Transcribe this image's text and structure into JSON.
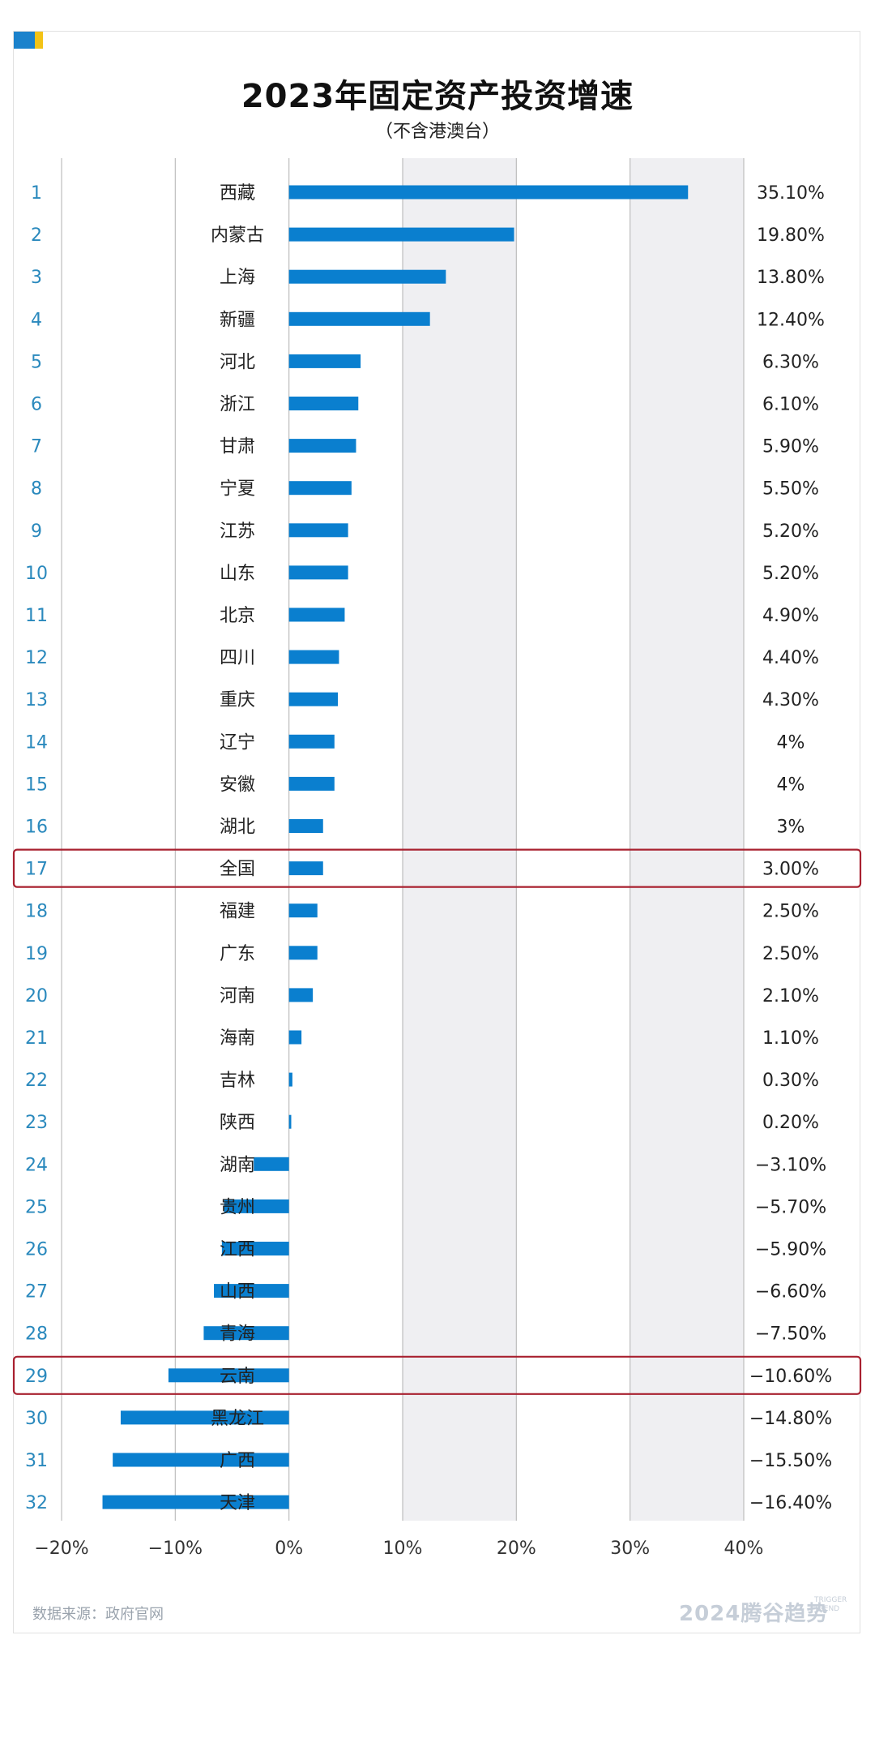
{
  "title": "2023年固定资产投资增速",
  "subtitle": "（不含港澳台）",
  "source": "数据来源：政府官网",
  "brand": {
    "logo_text": "2024腾谷趋势",
    "logo_en": "TRIGGER TREND"
  },
  "colors": {
    "bar": "#0a7fcf",
    "rank": "#2a89bd",
    "highlight": "#a8202f",
    "shade": "#efeff2"
  },
  "chart_data": {
    "type": "bar",
    "orientation": "horizontal",
    "title": "2023年固定资产投资增速",
    "subtitle": "（不含港澳台）",
    "xlim": [
      -20,
      40
    ],
    "ticks": [
      {
        "value": -20,
        "label": "−20%"
      },
      {
        "value": -10,
        "label": "−10%"
      },
      {
        "value": 0,
        "label": "0%"
      },
      {
        "value": 10,
        "label": "10%"
      },
      {
        "value": 20,
        "label": "20%"
      },
      {
        "value": 30,
        "label": "30%"
      },
      {
        "value": 40,
        "label": "40%"
      }
    ],
    "shaded_bands": [
      [
        10,
        20
      ],
      [
        30,
        40
      ]
    ],
    "highlight_ranks": [
      17,
      29
    ],
    "rows": [
      {
        "rank": "1",
        "name": "西藏",
        "value": 35.1,
        "label": "35.10%"
      },
      {
        "rank": "2",
        "name": "内蒙古",
        "value": 19.8,
        "label": "19.80%"
      },
      {
        "rank": "3",
        "name": "上海",
        "value": 13.8,
        "label": "13.80%"
      },
      {
        "rank": "4",
        "name": "新疆",
        "value": 12.4,
        "label": "12.40%"
      },
      {
        "rank": "5",
        "name": "河北",
        "value": 6.3,
        "label": "6.30%"
      },
      {
        "rank": "6",
        "name": "浙江",
        "value": 6.1,
        "label": "6.10%"
      },
      {
        "rank": "7",
        "name": "甘肃",
        "value": 5.9,
        "label": "5.90%"
      },
      {
        "rank": "8",
        "name": "宁夏",
        "value": 5.5,
        "label": "5.50%"
      },
      {
        "rank": "9",
        "name": "江苏",
        "value": 5.2,
        "label": "5.20%"
      },
      {
        "rank": "10",
        "name": "山东",
        "value": 5.2,
        "label": "5.20%"
      },
      {
        "rank": "11",
        "name": "北京",
        "value": 4.9,
        "label": "4.90%"
      },
      {
        "rank": "12",
        "name": "四川",
        "value": 4.4,
        "label": "4.40%"
      },
      {
        "rank": "13",
        "name": "重庆",
        "value": 4.3,
        "label": "4.30%"
      },
      {
        "rank": "14",
        "name": "辽宁",
        "value": 4.0,
        "label": "4%"
      },
      {
        "rank": "15",
        "name": "安徽",
        "value": 4.0,
        "label": "4%"
      },
      {
        "rank": "16",
        "name": "湖北",
        "value": 3.0,
        "label": "3%"
      },
      {
        "rank": "17",
        "name": "全国",
        "value": 3.0,
        "label": "3.00%"
      },
      {
        "rank": "18",
        "name": "福建",
        "value": 2.5,
        "label": "2.50%"
      },
      {
        "rank": "19",
        "name": "广东",
        "value": 2.5,
        "label": "2.50%"
      },
      {
        "rank": "20",
        "name": "河南",
        "value": 2.1,
        "label": "2.10%"
      },
      {
        "rank": "21",
        "name": "海南",
        "value": 1.1,
        "label": "1.10%"
      },
      {
        "rank": "22",
        "name": "吉林",
        "value": 0.3,
        "label": "0.30%"
      },
      {
        "rank": "23",
        "name": "陕西",
        "value": 0.2,
        "label": "0.20%"
      },
      {
        "rank": "24",
        "name": "湖南",
        "value": -3.1,
        "label": "−3.10%"
      },
      {
        "rank": "25",
        "name": "贵州",
        "value": -5.7,
        "label": "−5.70%"
      },
      {
        "rank": "26",
        "name": "江西",
        "value": -5.9,
        "label": "−5.90%"
      },
      {
        "rank": "27",
        "name": "山西",
        "value": -6.6,
        "label": "−6.60%"
      },
      {
        "rank": "28",
        "name": "青海",
        "value": -7.5,
        "label": "−7.50%"
      },
      {
        "rank": "29",
        "name": "云南",
        "value": -10.6,
        "label": "−10.60%"
      },
      {
        "rank": "30",
        "name": "黑龙江",
        "value": -14.8,
        "label": "−14.80%"
      },
      {
        "rank": "31",
        "name": "广西",
        "value": -15.5,
        "label": "−15.50%"
      },
      {
        "rank": "32",
        "name": "天津",
        "value": -16.4,
        "label": "−16.40%"
      }
    ]
  }
}
